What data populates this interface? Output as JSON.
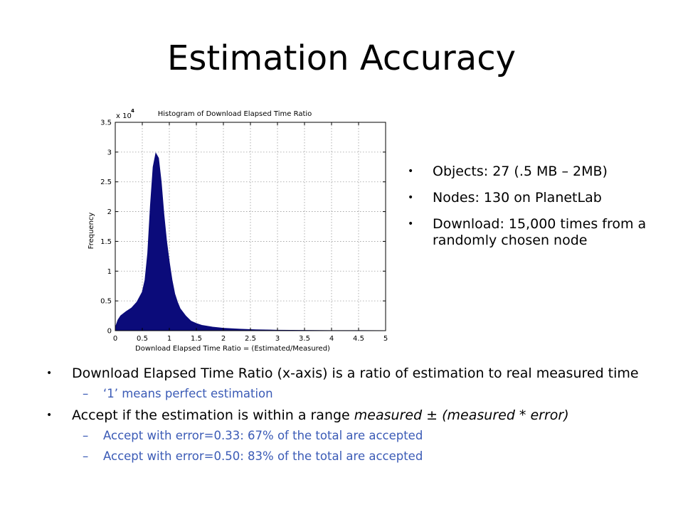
{
  "slide": {
    "title": "Estimation Accuracy"
  },
  "right_bullets": [
    "Objects: 27 (.5 MB – 2MB)",
    "Nodes: 130 on PlanetLab",
    "Download: 15,000 times from a randomly chosen node"
  ],
  "bottom_bullets": [
    {
      "text": "Download Elapsed Time Ratio (x-axis) is a ratio of estimation to real measured time",
      "text_italic": "",
      "sub": [
        "‘1’ means perfect estimation"
      ]
    },
    {
      "text": "Accept if the estimation is within a range ",
      "text_italic": "measured ± (measured * error)",
      "sub": [
        "Accept with error=0.33: 67% of the total are accepted",
        "Accept with error=0.50: 83% of the total are accepted"
      ]
    }
  ],
  "bullet_glyph": "•",
  "dash_glyph": "–",
  "chart_data": {
    "type": "area",
    "title": "Histogram of Download Elapsed Time Ratio",
    "xlabel": "Download Elapsed Time Ratio = (Estimated/Measured)",
    "ylabel": "Frequency",
    "y_multiplier": "x 10",
    "y_exponent": "4",
    "xlim": [
      0,
      5
    ],
    "ylim": [
      0,
      3.5
    ],
    "x_ticks": [
      0,
      0.5,
      1,
      1.5,
      2,
      2.5,
      3,
      3.5,
      4,
      4.5,
      5
    ],
    "x_tick_labels": [
      "0",
      "0.5",
      "1",
      "1.5",
      "2",
      "2.5",
      "3",
      "3.5",
      "4",
      "4.5",
      "5"
    ],
    "y_ticks": [
      0,
      0.5,
      1,
      1.5,
      2,
      2.5,
      3,
      3.5
    ],
    "y_tick_labels": [
      "0",
      "0.5",
      "1",
      "1.5",
      "2",
      "2.5",
      "3",
      "3.5"
    ],
    "grid": true,
    "color": "#0b0b7a",
    "x": [
      0,
      0.05,
      0.1,
      0.2,
      0.3,
      0.4,
      0.5,
      0.55,
      0.6,
      0.65,
      0.7,
      0.75,
      0.8,
      0.85,
      0.9,
      0.95,
      1.0,
      1.05,
      1.1,
      1.15,
      1.2,
      1.3,
      1.4,
      1.5,
      1.6,
      1.8,
      2.0,
      2.3,
      2.6,
      3.0,
      3.5,
      4.0,
      4.5,
      5.0
    ],
    "y": [
      0.05,
      0.18,
      0.25,
      0.32,
      0.38,
      0.48,
      0.65,
      0.85,
      1.3,
      2.1,
      2.75,
      2.98,
      2.9,
      2.5,
      1.95,
      1.5,
      1.15,
      0.85,
      0.62,
      0.48,
      0.37,
      0.25,
      0.16,
      0.12,
      0.09,
      0.06,
      0.04,
      0.025,
      0.015,
      0.008,
      0.004,
      0.002,
      0.001,
      0
    ]
  }
}
